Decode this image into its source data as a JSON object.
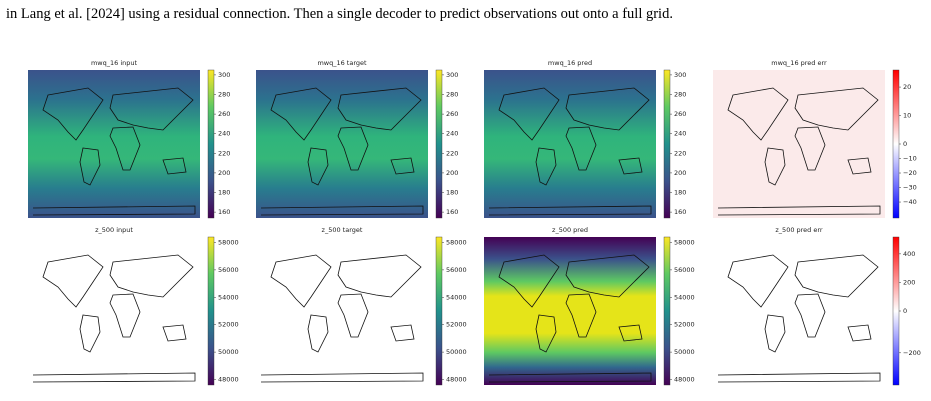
{
  "caption_fragment": "in Lang et al. [2024] using a residual connection. Then a single decoder to predict observations out onto a full grid.",
  "figure": {
    "rows": [
      {
        "panels": [
          {
            "title": "mwq_16 input",
            "colormap": "viridis",
            "clim": [
              154,
              305
            ],
            "ticks": [
              300,
              280,
              260,
              240,
              220,
              200,
              180,
              160
            ]
          },
          {
            "title": "mwq_16 target",
            "colormap": "viridis",
            "clim": [
              154,
              305
            ],
            "ticks": [
              300,
              280,
              260,
              240,
              220,
              200,
              180,
              160
            ]
          },
          {
            "title": "mwq_16 pred",
            "colormap": "viridis",
            "clim": [
              154,
              305
            ],
            "ticks": [
              300,
              280,
              260,
              240,
              220,
              200,
              180,
              160
            ]
          },
          {
            "title": "mwq_16 pred err",
            "colormap": "bwr",
            "norm": "two-slope",
            "clim": [
              -51,
              26
            ],
            "ticks": [
              20,
              10,
              0,
              {
                "value": -10,
                "label": "−10"
              },
              {
                "value": -20,
                "label": "−20"
              },
              {
                "value": -30,
                "label": "−30"
              },
              {
                "value": -40,
                "label": "−40"
              }
            ]
          }
        ]
      },
      {
        "panels": [
          {
            "title": "z_500 input",
            "colormap": "viridis",
            "clim": [
              47600,
              58400
            ],
            "ticks": [
              58000,
              56000,
              54000,
              52000,
              50000,
              48000
            ]
          },
          {
            "title": "z_500 target",
            "colormap": "viridis",
            "clim": [
              47600,
              58400
            ],
            "ticks": [
              58000,
              56000,
              54000,
              52000,
              50000,
              48000
            ]
          },
          {
            "title": "z_500 pred",
            "colormap": "viridis",
            "clim": [
              47600,
              58400
            ],
            "ticks": [
              58000,
              56000,
              54000,
              52000,
              50000,
              48000
            ]
          },
          {
            "title": "z_500 pred err",
            "colormap": "bwr",
            "norm": "two-slope",
            "clim": [
              -354,
              518
            ],
            "ticks": [
              400,
              200,
              0,
              {
                "value": -200,
                "label": "−200"
              }
            ]
          }
        ]
      }
    ]
  }
}
